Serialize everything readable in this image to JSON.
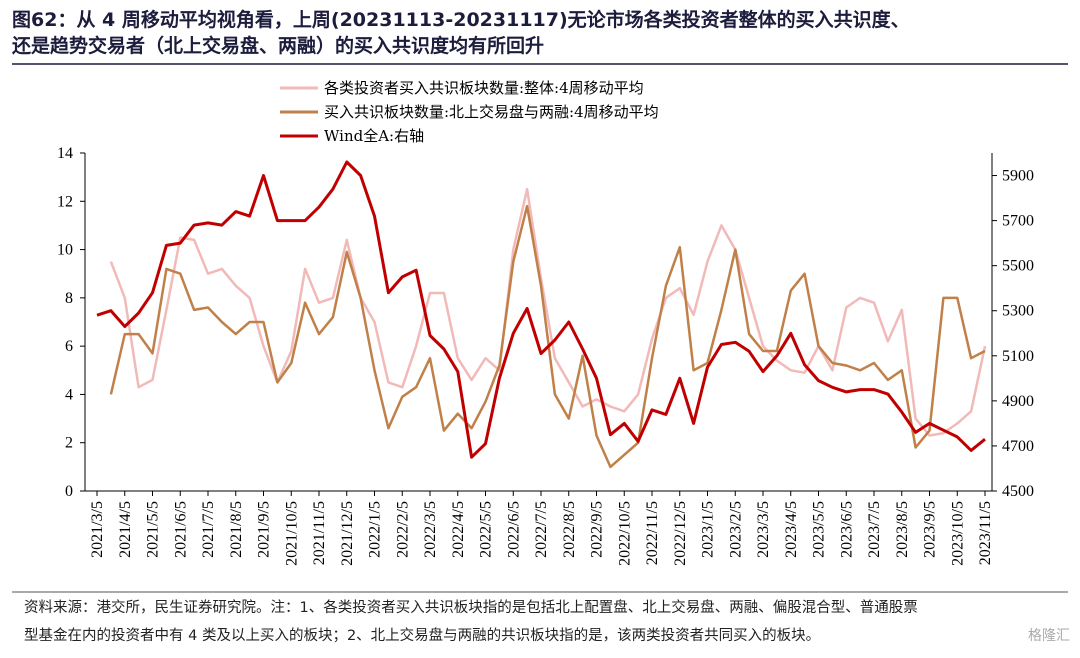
{
  "chart_data": {
    "type": "line",
    "title": [
      "图62：从 4 周移动平均视角看，上周(20231113-20231117)无论市场各类投资者整体的买入共识度、",
      "还是趋势交易者（北上交易盘、两融）的买入共识度均有所回升"
    ],
    "source": [
      "资料来源：港交所，民生证券研究院。注：1、各类投资者买入共识板块指的是包括北上配置盘、北上交易盘、两融、偏股混合型、普通股票",
      "型基金在内的投资者中有 4 类及以上买入的板块；2、北上交易盘与两融的共识板块指的是，该两类投资者共同买入的板块。"
    ],
    "watermark": "格隆汇",
    "categories": [
      "2021/3/5",
      null,
      "2021/4/5",
      null,
      "2021/5/5",
      null,
      "2021/6/5",
      null,
      "2021/7/5",
      null,
      "2021/8/5",
      null,
      "2021/9/5",
      null,
      "2021/10/5",
      null,
      "2021/11/5",
      null,
      "2021/12/5",
      null,
      "2022/1/5",
      null,
      "2022/2/5",
      null,
      "2022/3/5",
      null,
      "2022/4/5",
      null,
      "2022/5/5",
      null,
      "2022/6/5",
      null,
      "2022/7/5",
      null,
      "2022/8/5",
      null,
      "2022/9/5",
      null,
      "2022/10/5",
      null,
      "2022/11/5",
      null,
      "2022/12/5",
      null,
      "2023/1/5",
      null,
      "2023/2/5",
      null,
      "2023/3/5",
      null,
      "2023/4/5",
      null,
      "2023/5/5",
      null,
      "2023/6/5",
      null,
      "2023/7/5",
      null,
      "2023/8/5",
      null,
      "2023/9/5",
      null,
      "2023/10/5",
      null,
      "2023/11/5"
    ],
    "series": [
      {
        "name": "各类投资者买入共识板块数量:整体:4周移动平均",
        "color": "#f2b9b9",
        "values": [
          null,
          9.5,
          8.0,
          4.3,
          4.6,
          7.5,
          10.5,
          10.4,
          9.0,
          9.2,
          8.5,
          8.0,
          6.0,
          4.5,
          5.8,
          9.2,
          7.8,
          8.0,
          10.4,
          8.0,
          7.0,
          4.5,
          4.3,
          6.0,
          8.2,
          8.2,
          5.5,
          4.6,
          5.5,
          5.0,
          10.0,
          12.5,
          8.8,
          5.5,
          4.5,
          3.5,
          3.8,
          3.5,
          3.3,
          4.0,
          6.3,
          8.0,
          8.4,
          7.3,
          9.5,
          11.0,
          10.0,
          8.0,
          6.0,
          5.4,
          5.0,
          4.9,
          6.0,
          5.0,
          7.6,
          8.0,
          7.8,
          6.2,
          7.5,
          3.0,
          2.3,
          2.4,
          2.8,
          3.3,
          6.0
        ]
      },
      {
        "name": "买入共识板块数量:北上交易盘与两融:4周移动平均",
        "color": "#c0804a",
        "values": [
          null,
          4.0,
          6.5,
          6.5,
          5.7,
          9.2,
          9.0,
          7.5,
          7.6,
          7.0,
          6.5,
          7.0,
          7.0,
          4.5,
          5.3,
          7.8,
          6.5,
          7.2,
          9.9,
          8.0,
          5.0,
          2.6,
          3.9,
          4.3,
          5.5,
          2.5,
          3.2,
          2.6,
          3.7,
          5.2,
          9.5,
          11.8,
          8.5,
          4.0,
          3.0,
          5.6,
          2.3,
          1.0,
          1.5,
          2.0,
          5.5,
          8.5,
          10.1,
          5.0,
          5.3,
          7.5,
          10.0,
          6.5,
          5.8,
          5.8,
          8.3,
          9.0,
          6.0,
          5.3,
          5.2,
          5.0,
          5.3,
          4.6,
          5.0,
          1.8,
          2.5,
          8.0,
          8.0,
          5.5,
          5.8
        ]
      },
      {
        "name": "Wind全A:右轴",
        "color": "#c00000",
        "axis": "y2",
        "values": [
          5280,
          5300,
          5230,
          5290,
          5380,
          5590,
          5600,
          5680,
          5690,
          5680,
          5740,
          5720,
          5900,
          5700,
          5700,
          5700,
          5760,
          5840,
          5960,
          5900,
          5720,
          5380,
          5450,
          5480,
          5190,
          5130,
          5030,
          4650,
          4710,
          5000,
          5200,
          5310,
          5110,
          5170,
          5250,
          5130,
          5000,
          4750,
          4800,
          4720,
          4860,
          4840,
          5000,
          4800,
          5050,
          5150,
          5160,
          5120,
          5030,
          5100,
          5200,
          5060,
          4990,
          4960,
          4940,
          4950,
          4950,
          4930,
          4850,
          4760,
          4800,
          4770,
          4740,
          4680,
          4730
        ]
      }
    ],
    "ylim": [
      0,
      14
    ],
    "yticks": [
      0,
      2,
      4,
      6,
      8,
      10,
      12,
      14
    ],
    "y2lim": [
      4500,
      6000
    ],
    "y2ticks": [
      4500,
      4700,
      4900,
      5100,
      5300,
      5500,
      5700,
      5900
    ],
    "grid": false,
    "legend": "top"
  }
}
